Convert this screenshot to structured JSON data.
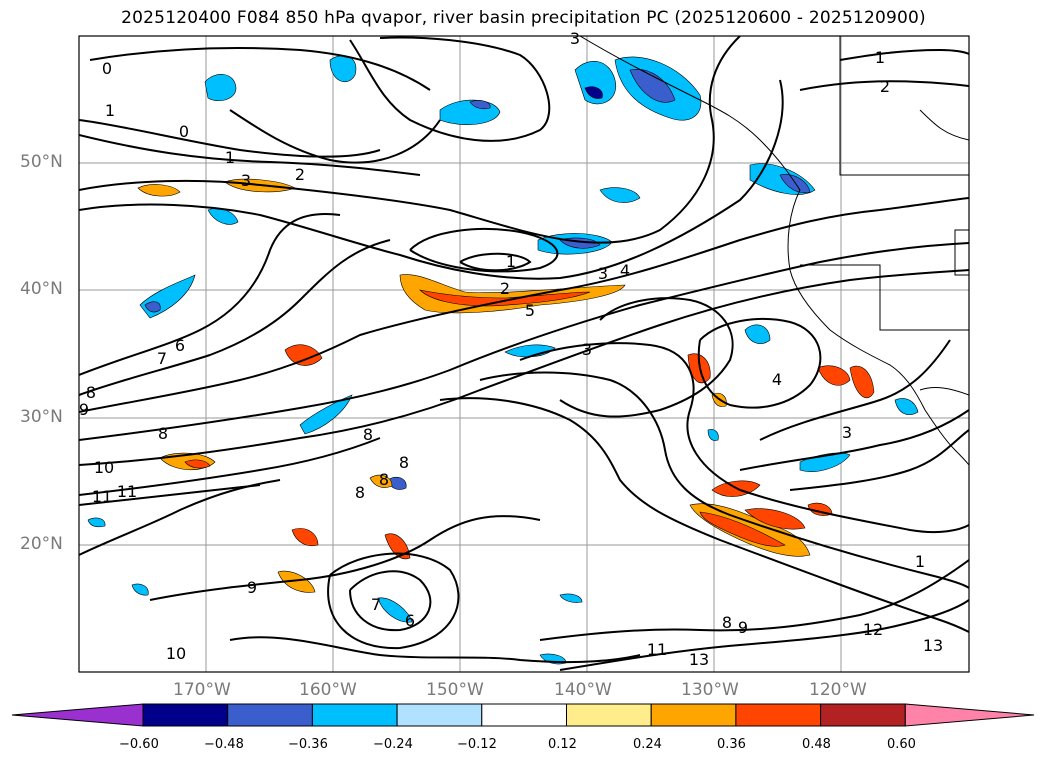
{
  "title": "2025120400 F084 850 hPa qvapor, river basin precipitation PC (2025120600 - 2025120900)",
  "lat_labels": [
    "50°N",
    "40°N",
    "30°N",
    "20°N"
  ],
  "lon_labels": [
    "170°W",
    "160°W",
    "150°W",
    "140°W",
    "130°W",
    "120°W"
  ],
  "colorbar": {
    "colors": [
      "#9b30d0",
      "#00008b",
      "#3a5fcd",
      "#00bfff",
      "#b0e2ff",
      "#ffffff",
      "#ffec8b",
      "#ffa500",
      "#ff4500",
      "#b22222",
      "#ff83a8"
    ],
    "tick_labels": [
      "−0.60",
      "−0.48",
      "−0.36",
      "−0.24",
      "−0.12",
      "0.12",
      "0.24",
      "0.36",
      "0.48",
      "0.60"
    ]
  },
  "contour_labels": [
    "3",
    "1",
    "2",
    "0",
    "1",
    "0",
    "1",
    "2",
    "3",
    "1",
    "3",
    "4",
    "2",
    "5",
    "6",
    "7",
    "8",
    "9",
    "8",
    "10",
    "11",
    "11",
    "3",
    "4",
    "3",
    "8",
    "8",
    "8",
    "8",
    "9",
    "7",
    "6",
    "1",
    "12",
    "13",
    "11",
    "13",
    "8",
    "9",
    "10"
  ]
}
